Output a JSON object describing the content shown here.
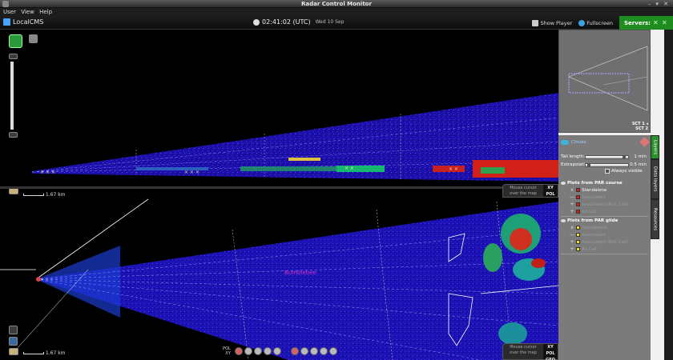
{
  "window": {
    "title": "Radar Control Monitor"
  },
  "menu": [
    "User",
    "View",
    "Help"
  ],
  "toolbar": {
    "site": "LocalCMS",
    "time": "02:41:02 (UTC)",
    "date": "Wed 10 Sep",
    "show_player": "Show Player",
    "fullscreen": "Fullscreen",
    "servers": "Servers:"
  },
  "radar": {
    "scale_label": "1.67 km",
    "scale_label_bottom": "1.67 km",
    "mouse_cursor": "Mouse cursor\nover the map",
    "pol_top": "XY\nPOL",
    "pol_bottom": "XY\nPOL\nGEO",
    "target_label": "Bumblebee",
    "status": {
      "pol": "POL",
      "xy": "XY"
    }
  },
  "minimap": {
    "sct1": "SCT 1",
    "sct2": "SCT 2"
  },
  "layers": {
    "header": "Clouds",
    "tail_length": {
      "label": "Tail length:",
      "value": "1 min",
      "level": 0.85
    },
    "extrapolation": {
      "label": "Extrapolation:",
      "value": "0.5 min",
      "level": 0.05
    },
    "always_visible": "Always visible",
    "section_course": "Plots from PAR course",
    "course_items": [
      {
        "symbol": "x",
        "color": "#d02020",
        "name": "Standalone",
        "style": "strong"
      },
      {
        "symbol": "—",
        "color": "#d02020",
        "name": "Associated",
        "style": "dim"
      },
      {
        "symbol": "+",
        "color": "#d02020",
        "name": "Associated (Roll Call)",
        "style": "dim"
      },
      {
        "symbol": "+",
        "color": "#d02020",
        "name": "All Call",
        "style": "dim"
      }
    ],
    "section_glide": "Plots from PAR glide",
    "glide_items": [
      {
        "symbol": "x",
        "color": "#e8e020",
        "name": "Standalone",
        "style": "dim"
      },
      {
        "symbol": "—",
        "color": "#e8e020",
        "name": "Associated",
        "style": "dim"
      },
      {
        "symbol": "+",
        "color": "#e8e020",
        "name": "Associated (Roll Call)",
        "style": "dim"
      },
      {
        "symbol": "+",
        "color": "#e8e020",
        "name": "All Call",
        "style": "dim"
      }
    ]
  },
  "vtabs": [
    "Layers",
    "Data layers",
    "Resources"
  ],
  "icons": {
    "app": "radar-app-icon",
    "site": "monitor-icon",
    "clock": "clock-icon",
    "player": "player-icon",
    "fullscreen": "fullscreen-icon"
  }
}
